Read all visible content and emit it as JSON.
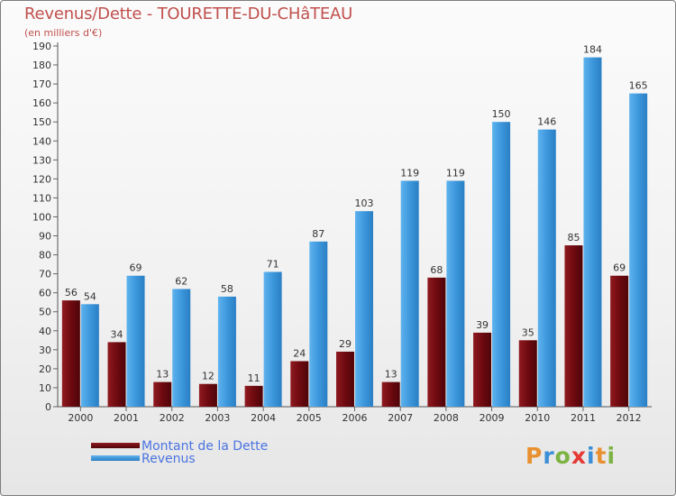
{
  "title": "Revenus/Dette - TOURETTE-DU-CHâTEAU",
  "subtitle": "(en milliers d'€)",
  "colors": {
    "dette": "#6e0a10",
    "revenus": "#3d97dc",
    "text": "#333333",
    "title": "#c0504d",
    "legend_text": "#4a73e0"
  },
  "logo": {
    "text": "Proxiti",
    "colors": [
      "#e8902f",
      "#3c8fd6",
      "#7cb342",
      "#e53935",
      "#3c8fd6",
      "#e8902f",
      "#7cb342"
    ]
  },
  "chart_data": {
    "type": "bar",
    "categories": [
      "2000",
      "2001",
      "2002",
      "2003",
      "2004",
      "2005",
      "2006",
      "2007",
      "2008",
      "2009",
      "2010",
      "2011",
      "2012"
    ],
    "series": [
      {
        "name": "Montant de la Dette",
        "values": [
          56,
          34,
          13,
          12,
          11,
          24,
          29,
          13,
          68,
          39,
          35,
          85,
          69
        ]
      },
      {
        "name": "Revenus",
        "values": [
          54,
          69,
          62,
          58,
          71,
          87,
          103,
          119,
          119,
          150,
          146,
          184,
          165
        ]
      }
    ],
    "title": "Revenus/Dette - TOURETTE-DU-CHâTEAU",
    "ylim": [
      0,
      190
    ],
    "ytick_step": 10,
    "legend": "bottom-left",
    "grid": false
  }
}
